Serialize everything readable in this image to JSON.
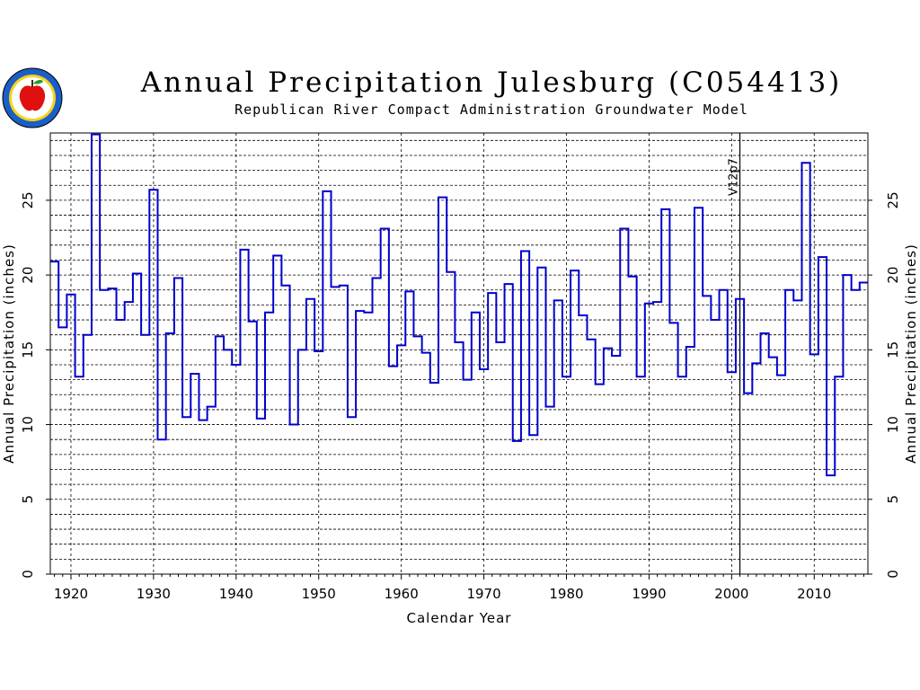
{
  "header": {
    "title": "Annual Precipitation Julesburg (C054413)",
    "subtitle": "Republican River Compact Administration Groundwater Model",
    "logo_icon": "state-seal-apple-icon"
  },
  "colors": {
    "series": "#0000cc",
    "grid": "#000000",
    "marker": "#000000"
  },
  "chart_data": {
    "type": "line",
    "step": true,
    "xlabel": "Calendar Year",
    "ylabel": "Annual Precipitation (inches)",
    "xlim": [
      1917.5,
      2016.5
    ],
    "ylim": [
      0,
      29.5
    ],
    "xticks": [
      1920,
      1930,
      1940,
      1950,
      1960,
      1970,
      1980,
      1990,
      2000,
      2010
    ],
    "yticks": [
      0,
      5,
      10,
      15,
      20,
      25
    ],
    "grid": true,
    "annotations": [
      {
        "x": 2001,
        "label": "V12p7"
      }
    ],
    "series": [
      {
        "x": [
          1918,
          1919,
          1920,
          1921,
          1922,
          1923,
          1924,
          1925,
          1926,
          1927,
          1928,
          1929,
          1930,
          1931,
          1932,
          1933,
          1934,
          1935,
          1936,
          1937,
          1938,
          1939,
          1940,
          1941,
          1942,
          1943,
          1944,
          1945,
          1946,
          1947,
          1948,
          1949,
          1950,
          1951,
          1952,
          1953,
          1954,
          1955,
          1956,
          1957,
          1958,
          1959,
          1960,
          1961,
          1962,
          1963,
          1964,
          1965,
          1966,
          1967,
          1968,
          1969,
          1970,
          1971,
          1972,
          1973,
          1974,
          1975,
          1976,
          1977,
          1978,
          1979,
          1980,
          1981,
          1982,
          1983,
          1984,
          1985,
          1986,
          1987,
          1988,
          1989,
          1990,
          1991,
          1992,
          1993,
          1994,
          1995,
          1996,
          1997,
          1998,
          1999,
          2000,
          2001,
          2002,
          2003,
          2004,
          2005,
          2006,
          2007,
          2008,
          2009,
          2010,
          2011,
          2012,
          2013,
          2014,
          2015,
          2016
        ],
        "values": [
          20.9,
          16.5,
          18.7,
          13.2,
          16.0,
          29.4,
          19.0,
          19.1,
          17.0,
          18.2,
          20.1,
          16.0,
          25.7,
          9.0,
          16.1,
          19.8,
          10.5,
          13.4,
          10.3,
          11.2,
          15.9,
          15.0,
          14.0,
          21.7,
          16.9,
          10.4,
          17.5,
          21.3,
          19.3,
          10.0,
          15.0,
          18.4,
          14.9,
          25.6,
          19.2,
          19.3,
          10.5,
          17.6,
          17.5,
          19.8,
          23.1,
          13.9,
          15.3,
          18.9,
          15.9,
          14.8,
          12.8,
          25.2,
          20.2,
          15.5,
          13.0,
          17.5,
          13.7,
          18.8,
          15.5,
          19.4,
          8.9,
          21.6,
          9.3,
          20.5,
          11.2,
          18.3,
          13.2,
          20.3,
          17.3,
          15.7,
          12.7,
          15.1,
          14.6,
          23.1,
          19.9,
          13.2,
          18.1,
          18.2,
          24.4,
          16.8,
          13.2,
          15.2,
          24.5,
          18.6,
          17.0,
          19.0,
          13.5,
          18.4,
          12.1,
          14.1,
          16.1,
          14.5,
          13.3,
          19.0,
          18.3,
          27.5,
          14.7,
          21.2,
          6.6,
          13.2,
          20.0,
          19.0,
          19.5
        ]
      }
    ]
  }
}
